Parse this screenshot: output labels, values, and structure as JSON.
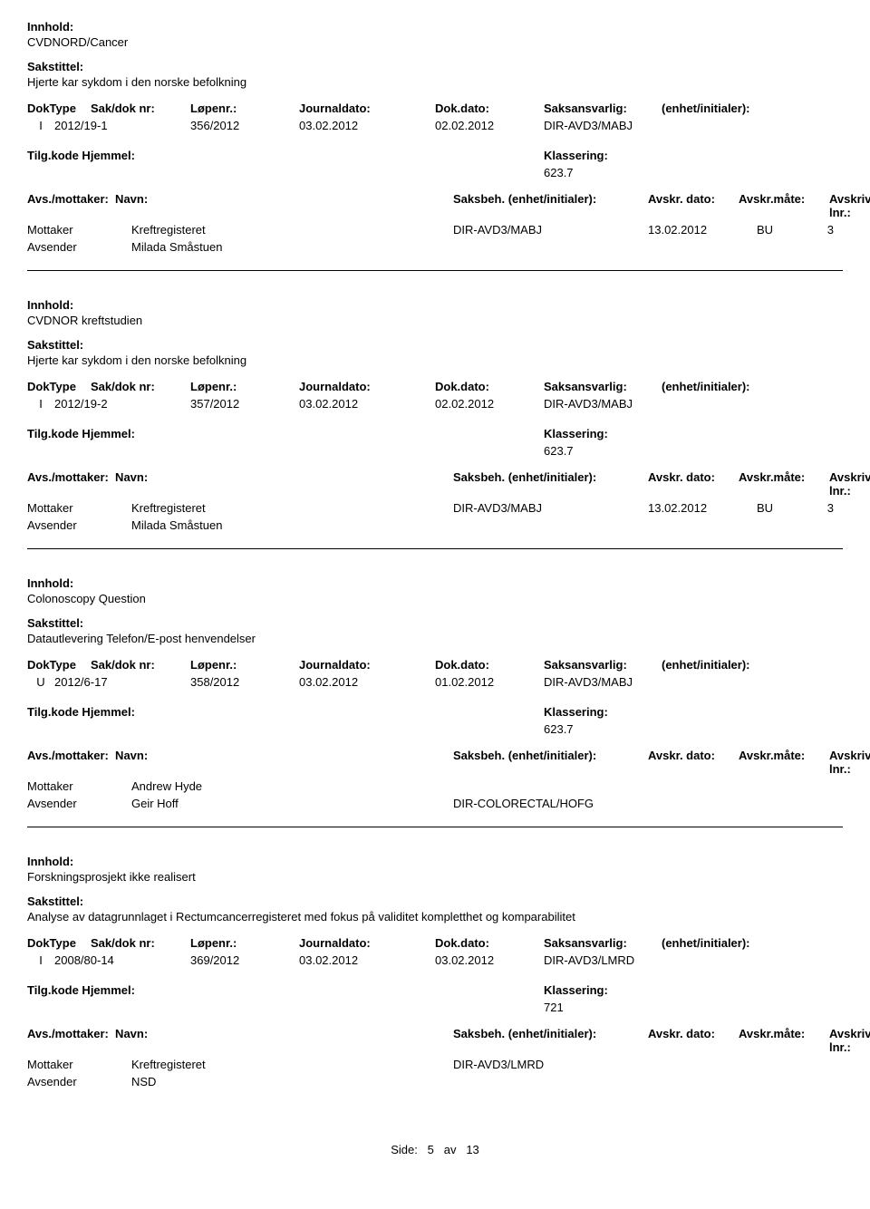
{
  "labels": {
    "innhold": "Innhold:",
    "sakstittel": "Sakstittel:",
    "doktype": "DokType",
    "sakdok": "Sak/dok nr:",
    "lopenr": "Løpenr.:",
    "journaldato": "Journaldato:",
    "dokdato": "Dok.dato:",
    "saksansvarlig": "Saksansvarlig:",
    "enhet": "(enhet/initialer):",
    "tilgkode": "Tilg.kode",
    "hjemmel": "Hjemmel:",
    "klassering": "Klassering:",
    "avsmottaker": "Avs./mottaker:",
    "navn": "Navn:",
    "saksbeh": "Saksbeh.",
    "enhet2": "(enhet/initialer):",
    "avskrdato": "Avskr. dato:",
    "avskrmate": "Avskr.måte:",
    "avskrivlnr": "Avskriv lnr.:",
    "mottaker": "Mottaker",
    "avsender": "Avsender"
  },
  "records": [
    {
      "innhold": "CVDNORD/Cancer",
      "sakstittel": "Hjerte kar sykdom i den norske befolkning",
      "doktype": "I",
      "sakdok": "2012/19-1",
      "lopenr": "356/2012",
      "journaldato": "03.02.2012",
      "dokdato": "02.02.2012",
      "saksansvarlig": "DIR-AVD3/MABJ",
      "klassering": "623.7",
      "parties": [
        {
          "role": "Mottaker",
          "name": "Kreftregisteret",
          "beh": "DIR-AVD3/MABJ",
          "dato": "13.02.2012",
          "mate": "BU",
          "lnr": "3"
        },
        {
          "role": "Avsender",
          "name": "Milada Småstuen",
          "beh": "",
          "dato": "",
          "mate": "",
          "lnr": ""
        }
      ]
    },
    {
      "innhold": "CVDNOR kreftstudien",
      "sakstittel": "Hjerte kar sykdom i den norske befolkning",
      "doktype": "I",
      "sakdok": "2012/19-2",
      "lopenr": "357/2012",
      "journaldato": "03.02.2012",
      "dokdato": "02.02.2012",
      "saksansvarlig": "DIR-AVD3/MABJ",
      "klassering": "623.7",
      "parties": [
        {
          "role": "Mottaker",
          "name": "Kreftregisteret",
          "beh": "DIR-AVD3/MABJ",
          "dato": "13.02.2012",
          "mate": "BU",
          "lnr": "3"
        },
        {
          "role": "Avsender",
          "name": "Milada Småstuen",
          "beh": "",
          "dato": "",
          "mate": "",
          "lnr": ""
        }
      ]
    },
    {
      "innhold": "Colonoscopy Question",
      "sakstittel": "Datautlevering Telefon/E-post henvendelser",
      "doktype": "U",
      "sakdok": "2012/6-17",
      "lopenr": "358/2012",
      "journaldato": "03.02.2012",
      "dokdato": "01.02.2012",
      "saksansvarlig": "DIR-AVD3/MABJ",
      "klassering": "623.7",
      "parties": [
        {
          "role": "Mottaker",
          "name": "Andrew Hyde",
          "beh": "",
          "dato": "",
          "mate": "",
          "lnr": ""
        },
        {
          "role": "Avsender",
          "name": "Geir Hoff",
          "beh": "DIR-COLORECTAL/HOFG",
          "dato": "",
          "mate": "",
          "lnr": ""
        }
      ]
    },
    {
      "innhold": "Forskningsprosjekt ikke realisert",
      "sakstittel": "Analyse av datagrunnlaget i Rectumcancerregisteret med fokus på validitet kompletthet og komparabilitet",
      "doktype": "I",
      "sakdok": "2008/80-14",
      "lopenr": "369/2012",
      "journaldato": "03.02.2012",
      "dokdato": "03.02.2012",
      "saksansvarlig": "DIR-AVD3/LMRD",
      "klassering": "721",
      "parties": [
        {
          "role": "Mottaker",
          "name": "Kreftregisteret",
          "beh": "DIR-AVD3/LMRD",
          "dato": "",
          "mate": "",
          "lnr": ""
        },
        {
          "role": "Avsender",
          "name": "NSD",
          "beh": "",
          "dato": "",
          "mate": "",
          "lnr": ""
        }
      ]
    }
  ],
  "footer": {
    "side": "Side:",
    "page": "5",
    "av": "av",
    "total": "13"
  }
}
